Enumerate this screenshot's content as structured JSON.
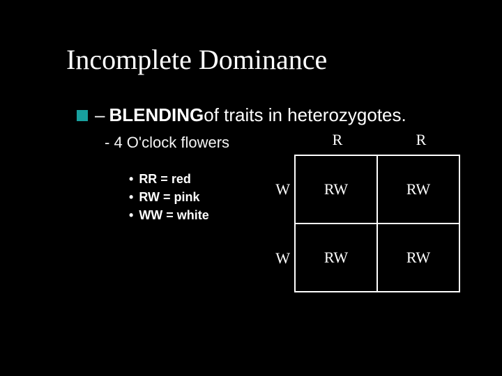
{
  "title": "Incomplete Dominance",
  "main_bullet": {
    "dash": "–",
    "bold": "BLENDING",
    "rest": " of traits in heterozygotes."
  },
  "sub_bullet": "- 4 O'clock flowers",
  "legend": {
    "items": [
      "RR = red",
      "RW = pink",
      "WW = white"
    ],
    "bullet": "•"
  },
  "punnett": {
    "col_headers": [
      "R",
      "R"
    ],
    "row_headers": [
      "W",
      "W"
    ],
    "cells": [
      [
        "RW",
        "RW"
      ],
      [
        "RW",
        "RW"
      ]
    ]
  },
  "colors": {
    "background": "#000000",
    "text": "#ffffff",
    "bullet_square": "#18a09e",
    "cell_border": "#ffffff"
  }
}
